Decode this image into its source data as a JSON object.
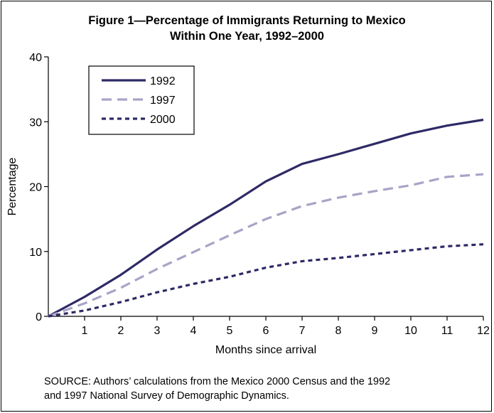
{
  "chart_data": {
    "type": "line",
    "title_line1": "Figure 1—Percentage of Immigrants Returning to Mexico",
    "title_line2": "Within One Year, 1992–2000",
    "xlabel": "Months since arrival",
    "ylabel": "Percentage",
    "xlim": [
      0,
      12
    ],
    "ylim": [
      0,
      40
    ],
    "x_ticks": [
      1,
      2,
      3,
      4,
      5,
      6,
      7,
      8,
      9,
      10,
      11,
      12
    ],
    "y_ticks": [
      0,
      10,
      20,
      30,
      40
    ],
    "grid": false,
    "legend_position": "top-left",
    "x": [
      0,
      1,
      2,
      3,
      4,
      5,
      6,
      7,
      8,
      9,
      10,
      11,
      12
    ],
    "series": [
      {
        "name": "1992",
        "color": "#2e2a66",
        "dash": "solid",
        "values": [
          0,
          3.0,
          6.4,
          10.3,
          13.9,
          17.2,
          20.8,
          23.5,
          25.0,
          26.6,
          28.2,
          29.4,
          30.3
        ]
      },
      {
        "name": "1997",
        "color": "#a9a3c6",
        "dash": "long-dash",
        "values": [
          0,
          2.0,
          4.4,
          7.3,
          9.9,
          12.5,
          15.0,
          17.0,
          18.3,
          19.3,
          20.2,
          21.5,
          21.9
        ]
      },
      {
        "name": "2000",
        "color": "#2e2a66",
        "dash": "short-dash",
        "values": [
          0,
          0.9,
          2.2,
          3.7,
          5.0,
          6.1,
          7.5,
          8.5,
          9.0,
          9.6,
          10.2,
          10.8,
          11.1
        ]
      }
    ]
  },
  "source": {
    "line1": "SOURCE: Authors’ calculations from the Mexico 2000 Census and the 1992",
    "line2": "and 1997 National Survey of Demographic Dynamics."
  }
}
